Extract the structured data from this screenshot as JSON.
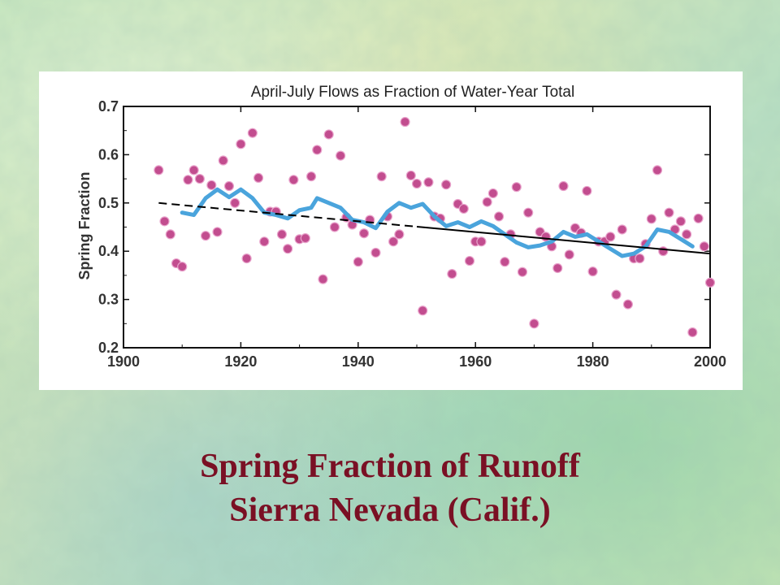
{
  "slide": {
    "caption_line1": "Spring Fraction of Runoff",
    "caption_line2": "Sierra Nevada (Calif.)"
  },
  "colors": {
    "points": "#c24d8f",
    "smoothed": "#4aa4dc",
    "trend": "#000000",
    "caption": "#7a1024"
  },
  "chart_data": {
    "type": "scatter",
    "title": "April-July Flows as Fraction of Water-Year Total",
    "xlabel": "",
    "ylabel": "Spring Fraction",
    "xlim": [
      1900,
      2000
    ],
    "ylim": [
      0.2,
      0.7
    ],
    "x_ticks": [
      "1900",
      "1920",
      "1940",
      "1960",
      "1980",
      "2000"
    ],
    "y_ticks": [
      "0.2",
      "0.3",
      "0.4",
      "0.5",
      "0.6",
      "0.7"
    ],
    "grid": false,
    "legend": "none",
    "series": [
      {
        "kind": "points",
        "points": [
          [
            1906,
            0.568
          ],
          [
            1907,
            0.462
          ],
          [
            1908,
            0.435
          ],
          [
            1909,
            0.375
          ],
          [
            1910,
            0.368
          ],
          [
            1911,
            0.548
          ],
          [
            1912,
            0.568
          ],
          [
            1913,
            0.55
          ],
          [
            1914,
            0.432
          ],
          [
            1915,
            0.537
          ],
          [
            1916,
            0.44
          ],
          [
            1917,
            0.588
          ],
          [
            1918,
            0.535
          ],
          [
            1919,
            0.5
          ],
          [
            1920,
            0.622
          ],
          [
            1921,
            0.385
          ],
          [
            1922,
            0.645
          ],
          [
            1923,
            0.552
          ],
          [
            1924,
            0.42
          ],
          [
            1925,
            0.482
          ],
          [
            1926,
            0.482
          ],
          [
            1927,
            0.435
          ],
          [
            1928,
            0.405
          ],
          [
            1929,
            0.548
          ],
          [
            1930,
            0.425
          ],
          [
            1931,
            0.427
          ],
          [
            1932,
            0.555
          ],
          [
            1933,
            0.61
          ],
          [
            1934,
            0.342
          ],
          [
            1935,
            0.642
          ],
          [
            1936,
            0.45
          ],
          [
            1937,
            0.598
          ],
          [
            1938,
            0.47
          ],
          [
            1939,
            0.455
          ],
          [
            1940,
            0.378
          ],
          [
            1941,
            0.437
          ],
          [
            1942,
            0.465
          ],
          [
            1943,
            0.397
          ],
          [
            1944,
            0.555
          ],
          [
            1945,
            0.472
          ],
          [
            1946,
            0.42
          ],
          [
            1947,
            0.435
          ],
          [
            1948,
            0.668
          ],
          [
            1949,
            0.557
          ],
          [
            1950,
            0.54
          ],
          [
            1951,
            0.277
          ],
          [
            1952,
            0.543
          ],
          [
            1953,
            0.472
          ],
          [
            1954,
            0.468
          ],
          [
            1955,
            0.538
          ],
          [
            1956,
            0.353
          ],
          [
            1957,
            0.498
          ],
          [
            1958,
            0.488
          ],
          [
            1959,
            0.38
          ],
          [
            1960,
            0.42
          ],
          [
            1961,
            0.42
          ],
          [
            1962,
            0.502
          ],
          [
            1963,
            0.52
          ],
          [
            1964,
            0.472
          ],
          [
            1965,
            0.378
          ],
          [
            1966,
            0.435
          ],
          [
            1967,
            0.533
          ],
          [
            1968,
            0.357
          ],
          [
            1969,
            0.48
          ],
          [
            1970,
            0.25
          ],
          [
            1971,
            0.44
          ],
          [
            1972,
            0.43
          ],
          [
            1973,
            0.41
          ],
          [
            1974,
            0.365
          ],
          [
            1975,
            0.535
          ],
          [
            1976,
            0.393
          ],
          [
            1977,
            0.448
          ],
          [
            1978,
            0.438
          ],
          [
            1979,
            0.525
          ],
          [
            1980,
            0.358
          ],
          [
            1981,
            0.42
          ],
          [
            1982,
            0.42
          ],
          [
            1983,
            0.43
          ],
          [
            1984,
            0.31
          ],
          [
            1985,
            0.445
          ],
          [
            1986,
            0.29
          ],
          [
            1987,
            0.385
          ],
          [
            1988,
            0.385
          ],
          [
            1989,
            0.415
          ],
          [
            1990,
            0.467
          ],
          [
            1991,
            0.568
          ],
          [
            1992,
            0.4
          ],
          [
            1993,
            0.48
          ],
          [
            1994,
            0.445
          ],
          [
            1995,
            0.462
          ],
          [
            1996,
            0.435
          ],
          [
            1997,
            0.232
          ],
          [
            1998,
            0.468
          ],
          [
            1999,
            0.41
          ],
          [
            2000,
            0.335
          ]
        ]
      },
      {
        "kind": "smoothed-line",
        "points": [
          [
            1910,
            0.48
          ],
          [
            1912,
            0.475
          ],
          [
            1914,
            0.51
          ],
          [
            1916,
            0.528
          ],
          [
            1918,
            0.512
          ],
          [
            1920,
            0.528
          ],
          [
            1922,
            0.51
          ],
          [
            1924,
            0.48
          ],
          [
            1926,
            0.475
          ],
          [
            1928,
            0.468
          ],
          [
            1930,
            0.485
          ],
          [
            1932,
            0.49
          ],
          [
            1933,
            0.51
          ],
          [
            1935,
            0.5
          ],
          [
            1937,
            0.49
          ],
          [
            1939,
            0.465
          ],
          [
            1941,
            0.46
          ],
          [
            1943,
            0.448
          ],
          [
            1945,
            0.482
          ],
          [
            1947,
            0.5
          ],
          [
            1949,
            0.49
          ],
          [
            1951,
            0.498
          ],
          [
            1953,
            0.472
          ],
          [
            1955,
            0.452
          ],
          [
            1957,
            0.46
          ],
          [
            1959,
            0.45
          ],
          [
            1961,
            0.462
          ],
          [
            1963,
            0.452
          ],
          [
            1965,
            0.435
          ],
          [
            1967,
            0.418
          ],
          [
            1969,
            0.408
          ],
          [
            1971,
            0.412
          ],
          [
            1973,
            0.42
          ],
          [
            1975,
            0.44
          ],
          [
            1977,
            0.43
          ],
          [
            1979,
            0.435
          ],
          [
            1981,
            0.42
          ],
          [
            1983,
            0.405
          ],
          [
            1985,
            0.39
          ],
          [
            1987,
            0.395
          ],
          [
            1989,
            0.41
          ],
          [
            1991,
            0.445
          ],
          [
            1993,
            0.44
          ],
          [
            1995,
            0.425
          ],
          [
            1997,
            0.41
          ]
        ]
      },
      {
        "kind": "trend-line",
        "points": [
          [
            1906,
            0.5
          ],
          [
            2000,
            0.395
          ]
        ],
        "dashed_until": 1950
      }
    ]
  }
}
